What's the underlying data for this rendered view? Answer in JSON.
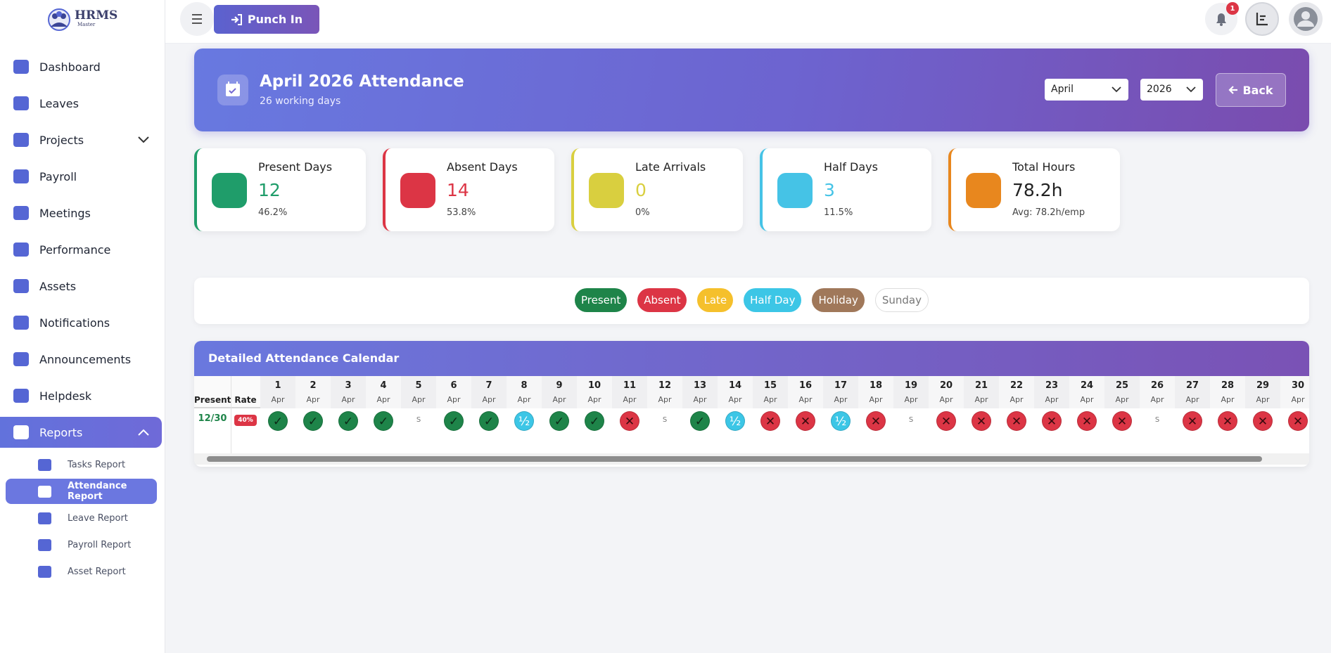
{
  "sidebar": {
    "logo": "HRMS",
    "logo_sub": "Master",
    "nav": [
      {
        "label": "Dashboard"
      },
      {
        "label": "Leaves"
      },
      {
        "label": "Projects",
        "expand": "down"
      },
      {
        "label": "Payroll"
      },
      {
        "label": "Meetings"
      },
      {
        "label": "Performance"
      },
      {
        "label": "Assets"
      },
      {
        "label": "Notifications"
      },
      {
        "label": "Announcements"
      },
      {
        "label": "Helpdesk"
      },
      {
        "label": "Reports",
        "expand": "up",
        "active": true
      }
    ],
    "sub": [
      {
        "label": "Tasks Report"
      },
      {
        "label": "Attendance Report",
        "active": true
      },
      {
        "label": "Leave Report"
      },
      {
        "label": "Payroll Report"
      },
      {
        "label": "Asset Report"
      }
    ]
  },
  "topbar": {
    "punch": "Punch In",
    "badge": 1
  },
  "header": {
    "title": "April 2026 Attendance",
    "subtitle": "26 working days",
    "month": "April",
    "year": "2026",
    "back": "Back"
  },
  "stats": [
    {
      "label": "Present Days",
      "value": 12,
      "sub": "46.2%",
      "color": "#1f9d6a"
    },
    {
      "label": "Absent Days",
      "value": 14,
      "sub": "53.8%",
      "color": "#dc3545"
    },
    {
      "label": "Late Arrivals",
      "value": 0,
      "sub": "0%",
      "color": "#d9cf3f"
    },
    {
      "label": "Half Days",
      "value": 3,
      "sub": "11.5%",
      "color": "#45c3e6"
    },
    {
      "label": "Total Hours",
      "value": "78.2h",
      "sub": "Avg: 78.2h/emp",
      "color": "#e8871e",
      "value_color": "#222"
    }
  ],
  "legend": [
    {
      "label": "Present",
      "color": "#1e8449",
      "text_color": "#fff"
    },
    {
      "label": "Absent",
      "color": "#dc3545",
      "text_color": "#fff"
    },
    {
      "label": "Late",
      "color": "#f5c02c",
      "text_color": "#fff"
    },
    {
      "label": "Half Day",
      "color": "#3cc6e6",
      "text_color": "#fff"
    },
    {
      "label": "Holiday",
      "color": "#a0785a",
      "text_color": "#fff"
    },
    {
      "label": "Sunday",
      "color": "#ffffff",
      "text_color": "#777"
    }
  ],
  "calendar": {
    "title": "Detailed Attendance Calendar",
    "col_present": "Present",
    "col_rate": "Rate",
    "days": [
      {
        "d": 1,
        "m": "Apr"
      },
      {
        "d": 2,
        "m": "Apr"
      },
      {
        "d": 3,
        "m": "Apr"
      },
      {
        "d": 4,
        "m": "Apr"
      },
      {
        "d": 5,
        "m": "Apr"
      },
      {
        "d": 6,
        "m": "Apr"
      },
      {
        "d": 7,
        "m": "Apr"
      },
      {
        "d": 8,
        "m": "Apr"
      },
      {
        "d": 9,
        "m": "Apr"
      },
      {
        "d": 10,
        "m": "Apr"
      },
      {
        "d": 11,
        "m": "Apr"
      },
      {
        "d": 12,
        "m": "Apr"
      },
      {
        "d": 13,
        "m": "Apr"
      },
      {
        "d": 14,
        "m": "Apr"
      },
      {
        "d": 15,
        "m": "Apr"
      },
      {
        "d": 16,
        "m": "Apr"
      },
      {
        "d": 17,
        "m": "Apr"
      },
      {
        "d": 18,
        "m": "Apr"
      },
      {
        "d": 19,
        "m": "Apr"
      },
      {
        "d": 20,
        "m": "Apr"
      },
      {
        "d": 21,
        "m": "Apr"
      },
      {
        "d": 22,
        "m": "Apr"
      },
      {
        "d": 23,
        "m": "Apr"
      },
      {
        "d": 24,
        "m": "Apr"
      },
      {
        "d": 25,
        "m": "Apr"
      },
      {
        "d": 26,
        "m": "Apr"
      },
      {
        "d": 27,
        "m": "Apr"
      },
      {
        "d": 28,
        "m": "Apr"
      },
      {
        "d": 29,
        "m": "Apr"
      },
      {
        "d": 30,
        "m": "Apr"
      }
    ],
    "present": "12/30",
    "rate": "40%",
    "cells": [
      {
        "s": "✓",
        "bg": "#1e8449"
      },
      {
        "s": "✓",
        "bg": "#1e8449"
      },
      {
        "s": "✓",
        "bg": "#1e8449"
      },
      {
        "s": "✓",
        "bg": "#1e8449"
      },
      {
        "s": "S"
      },
      {
        "s": "✓",
        "bg": "#1e8449"
      },
      {
        "s": "✓",
        "bg": "#1e8449"
      },
      {
        "s": "½",
        "bg": "#3cc6e6"
      },
      {
        "s": "✓",
        "bg": "#1e8449"
      },
      {
        "s": "✓",
        "bg": "#1e8449"
      },
      {
        "s": "✕",
        "bg": "#dc3545"
      },
      {
        "s": "S"
      },
      {
        "s": "✓",
        "bg": "#1e8449"
      },
      {
        "s": "½",
        "bg": "#3cc6e6"
      },
      {
        "s": "✕",
        "bg": "#dc3545"
      },
      {
        "s": "✕",
        "bg": "#dc3545"
      },
      {
        "s": "½",
        "bg": "#3cc6e6"
      },
      {
        "s": "✕",
        "bg": "#dc3545"
      },
      {
        "s": "S"
      },
      {
        "s": "✕",
        "bg": "#dc3545"
      },
      {
        "s": "✕",
        "bg": "#dc3545"
      },
      {
        "s": "✕",
        "bg": "#dc3545"
      },
      {
        "s": "✕",
        "bg": "#dc3545"
      },
      {
        "s": "✕",
        "bg": "#dc3545"
      },
      {
        "s": "✕",
        "bg": "#dc3545"
      },
      {
        "s": "S"
      },
      {
        "s": "✕",
        "bg": "#dc3545"
      },
      {
        "s": "✕",
        "bg": "#dc3545"
      },
      {
        "s": "✕",
        "bg": "#dc3545"
      },
      {
        "s": "✕",
        "bg": "#dc3545"
      }
    ]
  }
}
